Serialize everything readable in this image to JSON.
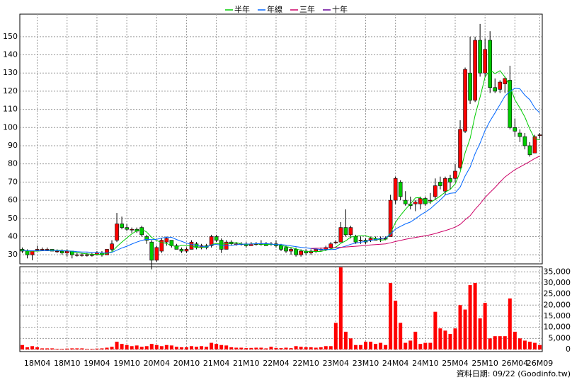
{
  "chart_data": {
    "type": "candlestick",
    "categories": [
      null,
      null,
      null,
      "18M04",
      null,
      null,
      null,
      null,
      null,
      "18M10",
      null,
      null,
      null,
      null,
      null,
      "19M04",
      null,
      null,
      null,
      null,
      null,
      "19M10",
      null,
      null,
      null,
      null,
      null,
      "20M04",
      null,
      null,
      null,
      null,
      null,
      "20M10",
      null,
      null,
      null,
      null,
      null,
      "21M04",
      null,
      null,
      null,
      null,
      null,
      "21M10",
      null,
      null,
      null,
      null,
      null,
      "22M04",
      null,
      null,
      null,
      null,
      null,
      "22M10",
      null,
      null,
      null,
      null,
      null,
      "23M04",
      null,
      null,
      null,
      null,
      null,
      "23M10",
      null,
      null,
      null,
      null,
      null,
      "24M04",
      null,
      null,
      null,
      null,
      null,
      "24M10",
      null,
      null,
      null,
      null,
      null,
      "25M04",
      null,
      null,
      null,
      null,
      null,
      "25M10",
      null,
      null,
      null,
      null,
      null,
      "26M04",
      null,
      null,
      null,
      null,
      "26M09"
    ],
    "open": [
      33,
      32,
      30,
      33,
      33,
      33,
      33,
      32,
      32,
      31,
      32,
      30,
      30,
      30,
      30,
      30,
      31,
      30,
      33,
      38,
      47,
      45,
      44,
      44,
      45,
      40,
      37,
      27,
      32,
      37,
      38,
      35,
      33,
      32,
      33,
      36,
      34,
      35,
      35,
      40,
      38,
      33,
      37,
      36,
      36,
      36,
      35,
      36,
      36,
      36,
      36,
      36,
      35,
      34,
      32,
      33,
      30,
      32,
      31,
      32,
      33,
      33,
      34,
      37,
      37,
      45,
      41,
      40,
      38,
      38,
      38,
      39,
      39,
      39,
      40,
      60,
      70,
      60,
      58,
      58,
      58,
      61,
      60,
      62,
      70,
      65,
      72,
      72,
      78,
      98,
      130,
      115,
      148,
      130,
      148,
      122,
      121,
      124,
      126,
      100,
      97,
      95,
      90,
      86,
      96
    ],
    "high": [
      34,
      33,
      32,
      35,
      34,
      34,
      33,
      33,
      33,
      33,
      32,
      31,
      31,
      31,
      31,
      32,
      32,
      33,
      38,
      53,
      51,
      47,
      45,
      45,
      46,
      41,
      38,
      35,
      39,
      40,
      38,
      36,
      34,
      34,
      38,
      37,
      36,
      36,
      41,
      41,
      39,
      38,
      38,
      37,
      37,
      37,
      37,
      37,
      38,
      37,
      37,
      38,
      36,
      35,
      34,
      34,
      33,
      33,
      33,
      33,
      34,
      35,
      37,
      38,
      48,
      55,
      46,
      41,
      40,
      39,
      40,
      40,
      40,
      40,
      63,
      73,
      71,
      65,
      62,
      60,
      62,
      62,
      64,
      72,
      73,
      73,
      74,
      80,
      104,
      133,
      150,
      150,
      157,
      149,
      153,
      127,
      126,
      128,
      134,
      105,
      99,
      97,
      92,
      96,
      97
    ],
    "low": [
      31,
      28,
      27,
      32,
      32,
      32,
      32,
      31,
      30,
      29,
      28,
      29,
      29,
      29,
      29,
      30,
      29,
      30,
      32,
      37,
      44,
      43,
      42,
      42,
      40,
      36,
      22,
      26,
      31,
      35,
      34,
      33,
      31,
      31,
      33,
      33,
      33,
      33,
      34,
      37,
      31,
      33,
      35,
      35,
      35,
      34,
      35,
      35,
      35,
      35,
      35,
      34,
      32,
      31,
      30,
      29,
      29,
      30,
      30,
      31,
      32,
      32,
      33,
      36,
      37,
      40,
      39,
      36,
      36,
      36,
      37,
      38,
      37,
      38,
      40,
      58,
      60,
      57,
      55,
      54,
      55,
      57,
      58,
      60,
      66,
      63,
      66,
      70,
      77,
      97,
      113,
      114,
      128,
      128,
      119,
      119,
      119,
      119,
      99,
      95,
      92,
      88,
      84,
      86,
      94
    ],
    "close": [
      32,
      30,
      32,
      33,
      33,
      33,
      32,
      32,
      31,
      32,
      30,
      30,
      30,
      30,
      30,
      31,
      30,
      33,
      36,
      47,
      45,
      44,
      44,
      43,
      41,
      38,
      27,
      34,
      38,
      39,
      35,
      33,
      32,
      33,
      37,
      34,
      35,
      34,
      40,
      38,
      33,
      37,
      36,
      36,
      36,
      35,
      36,
      36,
      36,
      35,
      36,
      35,
      33,
      32,
      33,
      30,
      32,
      31,
      32,
      33,
      33,
      34,
      36,
      37,
      45,
      41,
      45,
      37,
      38,
      37,
      39,
      38,
      39,
      39,
      60,
      72,
      62,
      58,
      57,
      59,
      61,
      58,
      60,
      68,
      68,
      72,
      70,
      76,
      99,
      132,
      115,
      148,
      130,
      143,
      122,
      120,
      125,
      127,
      100,
      98,
      95,
      90,
      85,
      95,
      96
    ],
    "up_color": "#ff0000",
    "down_color": "#00cc00",
    "ylim": [
      25,
      162
    ],
    "yticks": [
      30,
      40,
      50,
      60,
      70,
      80,
      90,
      100,
      110,
      120,
      130,
      140,
      150
    ],
    "grid": true,
    "series": [
      {
        "name": "半年",
        "color": "#00cc00",
        "values": [
          32.5,
          32,
          32,
          32,
          32.2,
          32.2,
          32.2,
          32.5,
          32.3,
          32.2,
          31.8,
          31.2,
          30.8,
          30.5,
          30.3,
          30.2,
          30.2,
          30.7,
          31.7,
          34.5,
          37,
          39.2,
          41.5,
          43.2,
          44,
          42.5,
          39.5,
          37.8,
          36.8,
          36.2,
          35.2,
          34.3,
          35.2,
          35,
          34.8,
          34,
          34,
          34.2,
          35.5,
          36.3,
          35.7,
          36.2,
          36.3,
          36.7,
          36,
          35.5,
          36,
          36,
          35.8,
          35.7,
          35.7,
          35.7,
          35.2,
          34.5,
          34,
          33.2,
          32.5,
          31.8,
          31.7,
          31.8,
          31.8,
          32.5,
          33.2,
          34.2,
          36.3,
          37.7,
          39.7,
          40.2,
          40.5,
          40.5,
          39.5,
          39,
          38,
          38.3,
          42,
          47.8,
          51.7,
          55,
          58,
          61.3,
          61.5,
          59.2,
          58.8,
          60.5,
          62.3,
          64.5,
          66,
          69,
          75.5,
          86.2,
          94,
          106.7,
          116.7,
          127.8,
          131.7,
          129.7,
          131.3,
          127.8,
          122.8,
          115.3,
          110.8,
          105.8,
          99.2,
          93.8,
          93.2
        ]
      },
      {
        "name": "年線",
        "color": "#0066ff",
        "values": [
          32.4,
          32.3,
          32.2,
          32.2,
          32.2,
          32.2,
          32.4,
          32.3,
          32.2,
          32.1,
          32,
          31.7,
          31.5,
          31.5,
          31.3,
          31.2,
          31,
          31,
          31.3,
          32.5,
          33.7,
          34.7,
          35.9,
          37,
          37.9,
          38.5,
          38.3,
          38.5,
          39.2,
          39.7,
          39.6,
          38.4,
          37.4,
          36.4,
          35.8,
          35.1,
          34.6,
          34.3,
          35.4,
          35.7,
          35.3,
          35.1,
          35.2,
          35.5,
          35.8,
          35.9,
          35.9,
          36.1,
          36.1,
          36.2,
          35.9,
          35.6,
          35.6,
          35.3,
          34.9,
          34.5,
          34.1,
          33.8,
          33.5,
          33.2,
          32.9,
          32.9,
          32.9,
          33,
          34,
          34.8,
          35.8,
          36.4,
          36.9,
          37.4,
          37.9,
          38.4,
          38.9,
          39.3,
          41.3,
          44.2,
          45.6,
          47,
          48,
          49.8,
          51.8,
          53.5,
          55.3,
          57.8,
          60.2,
          62.9,
          63.8,
          64.1,
          67.2,
          73.4,
          78.2,
          85.6,
          91.4,
          98.4,
          103.6,
          108,
          112.7,
          117.3,
          119.8,
          121.6,
          121.3,
          117.8,
          115.3,
          110.8,
          108
        ]
      },
      {
        "name": "三年",
        "color": "#cc0066",
        "values": [
          null,
          null,
          null,
          null,
          null,
          null,
          null,
          null,
          null,
          null,
          null,
          null,
          null,
          null,
          null,
          null,
          null,
          null,
          null,
          null,
          null,
          null,
          null,
          null,
          null,
          null,
          null,
          null,
          null,
          null,
          null,
          null,
          null,
          null,
          null,
          null,
          null,
          null,
          null,
          null,
          null,
          null,
          null,
          null,
          null,
          null,
          null,
          null,
          null,
          null,
          null,
          null,
          null,
          null,
          null,
          null,
          null,
          null,
          33.5,
          33.6,
          33.6,
          33.7,
          33.8,
          33.9,
          34.1,
          34.3,
          34.5,
          34.7,
          34.9,
          35.1,
          35.4,
          35.6,
          35.8,
          36,
          36.6,
          37.3,
          37.9,
          38.5,
          39,
          39.5,
          40,
          40.5,
          41,
          41.7,
          42.5,
          43.3,
          44.2,
          45.2,
          46.7,
          49.3,
          51.5,
          55,
          58,
          61.5,
          64.3,
          67,
          70,
          72.8,
          74.8,
          76.8,
          78.3,
          79.8,
          81.3,
          83,
          84.3
        ]
      },
      {
        "name": "十年",
        "color": "#660099"
      }
    ],
    "volume": {
      "color": "#ff0000",
      "values": [
        2000,
        1000,
        1500,
        1000,
        500,
        500,
        500,
        300,
        300,
        400,
        500,
        500,
        500,
        300,
        300,
        400,
        500,
        800,
        1200,
        3500,
        2500,
        2000,
        1500,
        1800,
        1200,
        1500,
        2500,
        2000,
        1500,
        2000,
        1800,
        1200,
        1000,
        1000,
        1500,
        1200,
        1500,
        1200,
        3000,
        2500,
        2000,
        1800,
        1000,
        800,
        800,
        600,
        700,
        800,
        800,
        500,
        1200,
        700,
        600,
        800,
        600,
        1500,
        1200,
        1000,
        1000,
        800,
        1000,
        1500,
        1500,
        12000,
        37000,
        8000,
        5000,
        2000,
        2000,
        3500,
        3500,
        2500,
        3000,
        2000,
        30000,
        22000,
        12000,
        3000,
        4000,
        8000,
        2500,
        3000,
        3000,
        17000,
        9500,
        8500,
        7000,
        9500,
        20000,
        18000,
        29000,
        30000,
        14000,
        21000,
        5000,
        6000,
        6000,
        6000,
        23000,
        8000,
        5000,
        4000,
        3500,
        3000,
        2000
      ],
      "ylim": [
        0,
        37000
      ],
      "yticks": [
        0,
        {
          "value": 5000,
          "label": "5,000"
        },
        {
          "value": 10000,
          "label": "10,000"
        },
        {
          "value": 15000,
          "label": "15,000"
        },
        {
          "value": 20000,
          "label": "20,000"
        },
        {
          "value": 25000,
          "label": "25,000"
        },
        {
          "value": 30000,
          "label": "30,000"
        },
        {
          "value": 35000,
          "label": "35,000"
        }
      ]
    },
    "source": "資料日期: 09/22 (Goodinfo.tw)"
  }
}
